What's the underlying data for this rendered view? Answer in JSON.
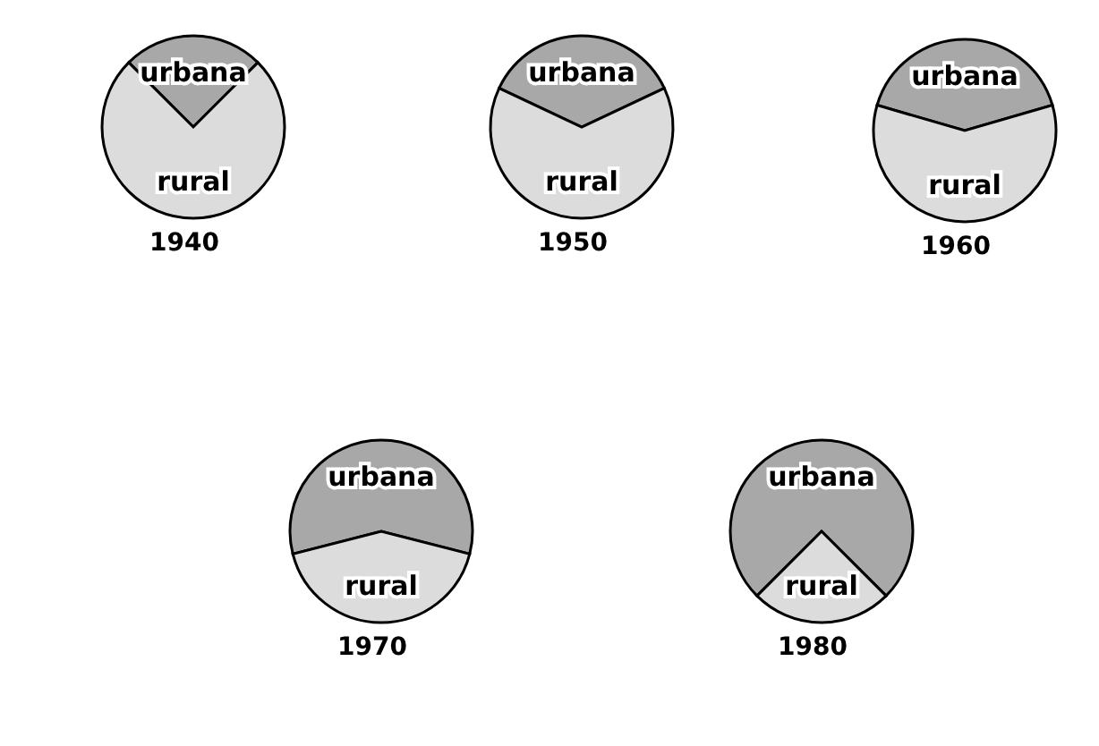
{
  "chart_data": [
    {
      "type": "pie",
      "title": "1940",
      "categories": [
        "urbana",
        "rural"
      ],
      "values": [
        25,
        75
      ],
      "colors": [
        "#a8a8a8",
        "#dcdcdc"
      ]
    },
    {
      "type": "pie",
      "title": "1950",
      "categories": [
        "urbana",
        "rural"
      ],
      "values": [
        36,
        64
      ],
      "colors": [
        "#a8a8a8",
        "#dcdcdc"
      ]
    },
    {
      "type": "pie",
      "title": "1960",
      "categories": [
        "urbana",
        "rural"
      ],
      "values": [
        41,
        59
      ],
      "colors": [
        "#a8a8a8",
        "#dcdcdc"
      ]
    },
    {
      "type": "pie",
      "title": "1970",
      "categories": [
        "urbana",
        "rural"
      ],
      "values": [
        58,
        42
      ],
      "colors": [
        "#a8a8a8",
        "#dcdcdc"
      ]
    },
    {
      "type": "pie",
      "title": "1980",
      "categories": [
        "urbana",
        "rural"
      ],
      "values": [
        75,
        25
      ],
      "colors": [
        "#a8a8a8",
        "#dcdcdc"
      ]
    }
  ]
}
